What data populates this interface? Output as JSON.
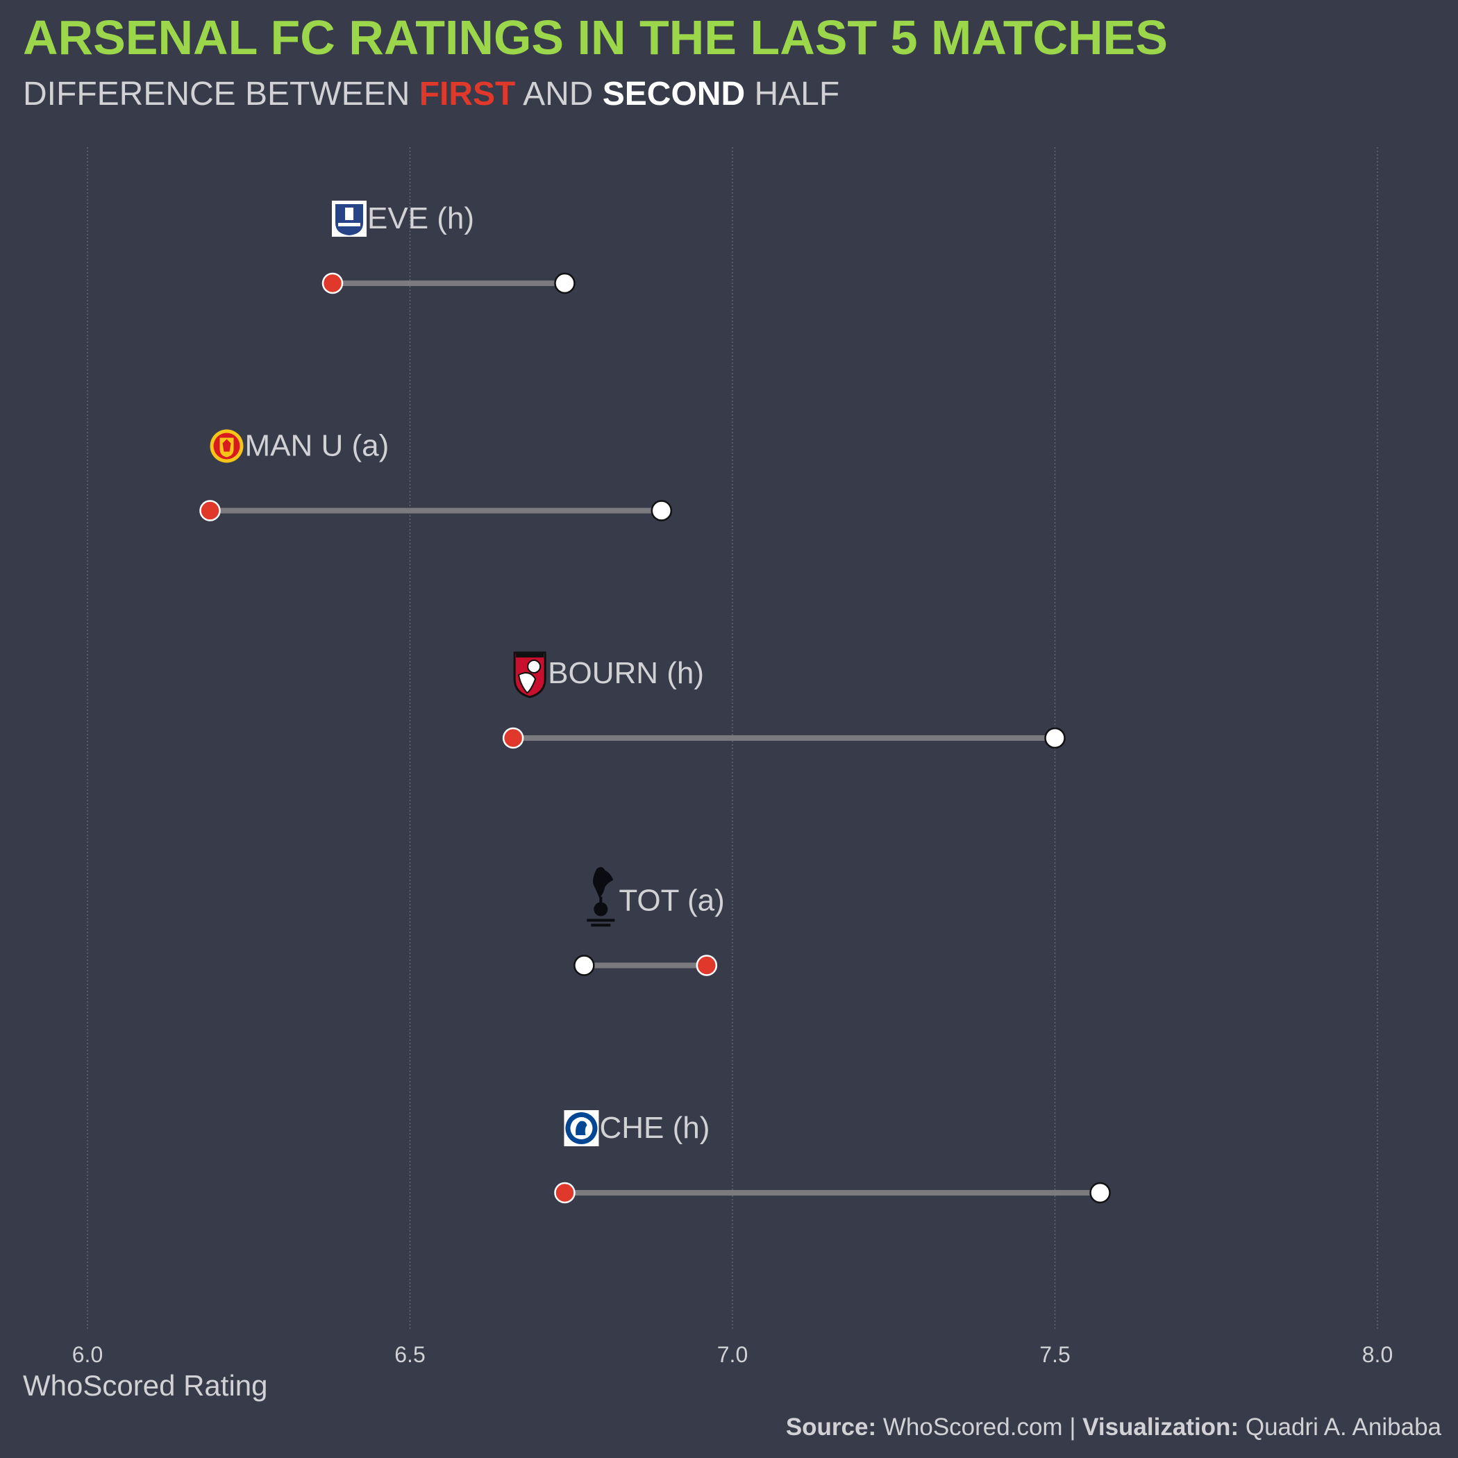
{
  "title": "ARSENAL FC RATINGS IN THE LAST 5 MATCHES",
  "subtitle": {
    "prefix": "DIFFERENCE BETWEEN",
    "first": "FIRST",
    "and": "AND",
    "second": "SECOND",
    "suffix": "HALF"
  },
  "footer": {
    "source_label": "Source:",
    "source_value": "WhoScored.com",
    "separator": "|",
    "viz_label": "Visualization:",
    "viz_value": "Quadri A. Anibaba"
  },
  "colors": {
    "background": "#383b4a",
    "title": "#9bd64b",
    "first_half": "#e0382b",
    "second_half": "#ffffff",
    "connector": "#7b7b7f",
    "text": "#d2d2d6"
  },
  "chart_data": {
    "type": "dumbbell",
    "xlabel": "WhoScored Rating",
    "xlim": [
      5.9,
      8.1
    ],
    "xticks": [
      "6.0",
      "6.5",
      "7.0",
      "7.5",
      "8.0"
    ],
    "grid": "vertical dotted",
    "series": [
      {
        "name": "FIRST",
        "color": "#e0382b"
      },
      {
        "name": "SECOND",
        "color": "#ffffff"
      }
    ],
    "matches": [
      {
        "label": "EVE (h)",
        "logo": "everton-crest-icon",
        "first": 6.38,
        "second": 6.74
      },
      {
        "label": "MAN U (a)",
        "logo": "man-utd-crest-icon",
        "first": 6.19,
        "second": 6.89
      },
      {
        "label": "BOURN (h)",
        "logo": "bournemouth-crest-icon",
        "first": 6.66,
        "second": 7.5
      },
      {
        "label": "TOT (a)",
        "logo": "tottenham-crest-icon",
        "first": 6.96,
        "second": 6.77
      },
      {
        "label": "CHE (h)",
        "logo": "chelsea-crest-icon",
        "first": 6.74,
        "second": 7.57
      }
    ]
  }
}
